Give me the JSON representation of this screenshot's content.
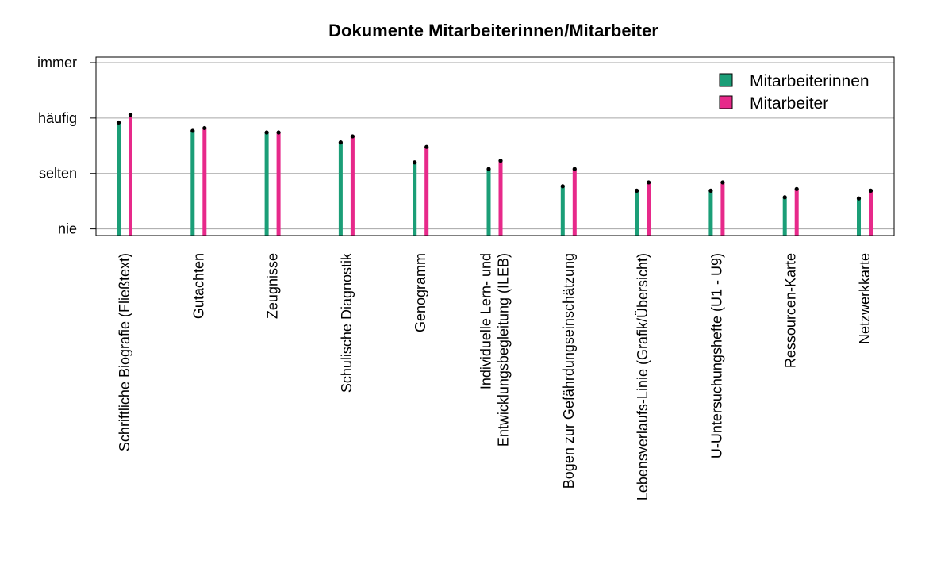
{
  "chart_data": {
    "type": "bar",
    "title": "Dokumente Mitarbeiterinnen/Mitarbeiter",
    "y_tick_labels": [
      "nie",
      "selten",
      "häufig",
      "immer"
    ],
    "ylim": [
      0.88,
      4.1
    ],
    "grid": true,
    "legend_position": "top-right",
    "categories": [
      [
        "Schriftliche Biografie (Fließtext)"
      ],
      [
        "Gutachten"
      ],
      [
        "Zeugnisse"
      ],
      [
        "Schulische Diagnostik"
      ],
      [
        "Genogramm"
      ],
      [
        "Individuelle Lern- und",
        "Entwicklungsbegleitung (ILEB)"
      ],
      [
        "Bogen zur Gefährdungseinschätzung"
      ],
      [
        "Lebensverlaufs-Linie (Grafik/Übersicht)"
      ],
      [
        "U-Untersuchungshefte (U1 - U9)"
      ],
      [
        "Ressourcen-Karte"
      ],
      [
        "Netzwerkkarte"
      ]
    ],
    "series": [
      {
        "name": "Mitarbeiterinnen",
        "color": "#1b9e77",
        "values": [
          2.92,
          2.77,
          2.74,
          2.56,
          2.2,
          2.08,
          1.77,
          1.69,
          1.69,
          1.57,
          1.55
        ]
      },
      {
        "name": "Mitarbeiter",
        "color": "#e7298a",
        "values": [
          3.06,
          2.82,
          2.74,
          2.67,
          2.48,
          2.23,
          2.08,
          1.84,
          1.84,
          1.72,
          1.69
        ]
      }
    ]
  }
}
